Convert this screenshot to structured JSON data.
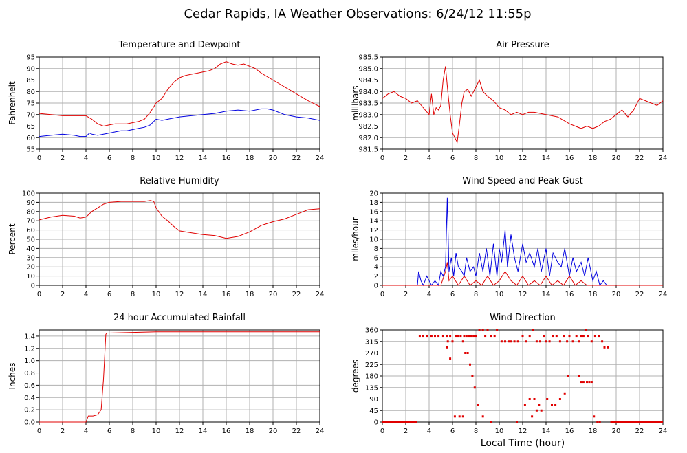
{
  "page": {
    "title": "Cedar Rapids, IA Weather Observations: 6/24/12 11:55p",
    "xlabel": "Local Time (hour)"
  },
  "colors": {
    "red": "#e00000",
    "blue": "#0000e0",
    "grid": "#b0b0b0"
  },
  "chart_data": [
    {
      "id": "temp",
      "type": "line",
      "title": "Temperature and Dewpoint",
      "ylabel": "Fahrenheit",
      "xlim": [
        0,
        24
      ],
      "ylim": [
        55,
        95
      ],
      "yticks": [
        "55",
        "60",
        "65",
        "70",
        "75",
        "80",
        "85",
        "90",
        "95"
      ],
      "xticks": [
        "0",
        "2",
        "4",
        "6",
        "8",
        "10",
        "12",
        "14",
        "16",
        "18",
        "20",
        "22",
        "24"
      ],
      "grid": true,
      "series": [
        {
          "color": "red",
          "x": [
            0,
            1,
            2,
            3,
            4,
            4.5,
            5,
            5.5,
            6,
            6.5,
            7,
            7.5,
            8,
            8.5,
            9,
            9.5,
            10,
            10.5,
            11,
            11.5,
            12,
            12.5,
            13,
            13.5,
            14,
            14.5,
            15,
            15.5,
            16,
            16.5,
            17,
            17.5,
            18,
            18.5,
            19,
            19.5,
            20,
            21,
            22,
            23,
            24
          ],
          "y": [
            70.5,
            70,
            69.5,
            69.5,
            69.5,
            68,
            66,
            65,
            65.5,
            66,
            66,
            66,
            66.5,
            67,
            68,
            71,
            75,
            77,
            81,
            84,
            86,
            87,
            87.5,
            88,
            88.5,
            89,
            90,
            92,
            93,
            92,
            91.5,
            92,
            91,
            90,
            88,
            86.5,
            85,
            82,
            79,
            76,
            73.5
          ]
        },
        {
          "color": "blue",
          "x": [
            0,
            1,
            2,
            3,
            3.5,
            4,
            4.3,
            4.5,
            5,
            5.5,
            6,
            6.5,
            7,
            7.5,
            8,
            8.5,
            9,
            9.5,
            10,
            10.5,
            11,
            11.5,
            12,
            13,
            14,
            15,
            16,
            17,
            18,
            19,
            19.5,
            20,
            21,
            22,
            23,
            24
          ],
          "y": [
            60.5,
            61,
            61.5,
            61,
            60.5,
            60.5,
            62,
            61.5,
            61,
            61.5,
            62,
            62.5,
            63,
            63,
            63.5,
            64,
            64.5,
            65.5,
            68,
            67.5,
            68,
            68.5,
            69,
            69.5,
            70,
            70.5,
            71.5,
            72,
            71.5,
            72.5,
            72.5,
            72,
            70,
            69,
            68.5,
            67.5
          ]
        }
      ]
    },
    {
      "id": "pressure",
      "type": "line",
      "title": "Air Pressure",
      "ylabel": "millibars",
      "xlim": [
        0,
        24
      ],
      "ylim": [
        981.5,
        985.5
      ],
      "yticks": [
        "981.5",
        "982.0",
        "982.5",
        "983.0",
        "983.5",
        "984.0",
        "984.5",
        "985.0",
        "985.5"
      ],
      "xticks": [
        "0",
        "2",
        "4",
        "6",
        "8",
        "10",
        "12",
        "14",
        "16",
        "18",
        "20",
        "22",
        "24"
      ],
      "grid": true,
      "series": [
        {
          "color": "red",
          "x": [
            0,
            0.5,
            1,
            1.5,
            2,
            2.5,
            3,
            3.5,
            4,
            4.2,
            4.4,
            4.6,
            4.8,
            5,
            5.2,
            5.4,
            5.6,
            5.8,
            6,
            6.2,
            6.4,
            6.6,
            6.8,
            7,
            7.3,
            7.6,
            8,
            8.3,
            8.6,
            9,
            9.5,
            10,
            10.5,
            11,
            11.5,
            12,
            12.5,
            13,
            14,
            15,
            16,
            16.5,
            17,
            17.5,
            18,
            18.5,
            19,
            19.5,
            20,
            20.5,
            21,
            21.5,
            22,
            22.5,
            23,
            23.5,
            24
          ],
          "y": [
            983.7,
            983.9,
            984.0,
            983.8,
            983.7,
            983.5,
            983.6,
            983.3,
            983.0,
            983.9,
            983.0,
            983.3,
            983.2,
            983.4,
            984.5,
            985.1,
            984.0,
            983.0,
            982.2,
            982.0,
            981.8,
            982.6,
            983.5,
            984.0,
            984.1,
            983.8,
            984.2,
            984.5,
            984.0,
            983.8,
            983.6,
            983.3,
            983.2,
            983.0,
            983.1,
            983.0,
            983.1,
            983.1,
            983.0,
            982.9,
            982.6,
            982.5,
            982.4,
            982.5,
            982.4,
            982.5,
            982.7,
            982.8,
            983.0,
            983.2,
            982.9,
            983.2,
            983.7,
            983.6,
            983.5,
            983.4,
            983.6
          ]
        }
      ]
    },
    {
      "id": "rh",
      "type": "line",
      "title": "Relative Humidity",
      "ylabel": "Percent",
      "xlim": [
        0,
        24
      ],
      "ylim": [
        0,
        100
      ],
      "yticks": [
        "0",
        "10",
        "20",
        "30",
        "40",
        "50",
        "60",
        "70",
        "80",
        "90",
        "100"
      ],
      "xticks": [
        "0",
        "2",
        "4",
        "6",
        "8",
        "10",
        "12",
        "14",
        "16",
        "18",
        "20",
        "22",
        "24"
      ],
      "grid": true,
      "series": [
        {
          "color": "red",
          "x": [
            0,
            1,
            2,
            3,
            3.5,
            4,
            4.5,
            5,
            5.5,
            6,
            7,
            8,
            9,
            9.5,
            9.8,
            10,
            10.5,
            11,
            11.5,
            12,
            13,
            14,
            15,
            16,
            17,
            18,
            19,
            20,
            21,
            22,
            23,
            24
          ],
          "y": [
            71,
            74,
            76,
            75,
            73,
            74,
            80,
            84,
            88,
            90,
            91,
            91,
            91,
            92,
            91,
            84,
            75,
            70,
            64,
            59,
            57,
            55,
            54,
            51,
            53,
            58,
            65,
            69,
            72,
            77,
            82,
            83
          ]
        }
      ]
    },
    {
      "id": "wind",
      "type": "line",
      "title": "Wind Speed and Peak Gust",
      "ylabel": "miles/hour",
      "xlim": [
        0,
        24
      ],
      "ylim": [
        0,
        20
      ],
      "yticks": [
        "0",
        "2",
        "4",
        "6",
        "8",
        "10",
        "12",
        "14",
        "16",
        "18",
        "20"
      ],
      "xticks": [
        "0",
        "2",
        "4",
        "6",
        "8",
        "10",
        "12",
        "14",
        "16",
        "18",
        "20",
        "22",
        "24"
      ],
      "grid": true,
      "series": [
        {
          "color": "blue",
          "x": [
            0,
            3,
            3.1,
            3.3,
            3.5,
            3.8,
            4,
            4.2,
            4.5,
            4.8,
            5,
            5.2,
            5.4,
            5.55,
            5.7,
            5.9,
            6.1,
            6.3,
            6.5,
            6.8,
            7,
            7.2,
            7.5,
            7.8,
            8,
            8.3,
            8.6,
            8.9,
            9.2,
            9.5,
            9.8,
            10,
            10.2,
            10.5,
            10.7,
            11,
            11.3,
            11.6,
            12,
            12.3,
            12.6,
            13,
            13.3,
            13.6,
            14,
            14.3,
            14.6,
            15,
            15.3,
            15.6,
            16,
            16.3,
            16.6,
            17,
            17.3,
            17.6,
            18,
            18.3,
            18.6,
            18.9,
            19.2,
            19.5,
            24
          ],
          "y": [
            0,
            0,
            3,
            1,
            0,
            2,
            1,
            0,
            1,
            0,
            3,
            2,
            4,
            19,
            3,
            6,
            2,
            7,
            4,
            3,
            2,
            6,
            3,
            4,
            2,
            7,
            3,
            8,
            2,
            9,
            2,
            8,
            5,
            12,
            4,
            11,
            6,
            3,
            9,
            5,
            7,
            4,
            8,
            3,
            8,
            2,
            7,
            5,
            4,
            8,
            2,
            6,
            3,
            5,
            2,
            6,
            1,
            3,
            0,
            1,
            0,
            0,
            0
          ]
        },
        {
          "color": "red",
          "x": [
            0,
            5,
            5.4,
            5.55,
            5.7,
            6,
            6.5,
            7,
            7.5,
            8,
            8.5,
            9,
            9.5,
            10,
            10.5,
            11,
            11.5,
            12,
            12.5,
            13,
            13.5,
            14,
            14.5,
            15,
            15.5,
            16,
            16.5,
            17,
            17.5,
            24
          ],
          "y": [
            0,
            0,
            3,
            5,
            1,
            2,
            0,
            2,
            0,
            1,
            0,
            2,
            0,
            1,
            3,
            1,
            0,
            2,
            0,
            1,
            0,
            2,
            0,
            1,
            0,
            2,
            0,
            1,
            0,
            0
          ]
        }
      ]
    },
    {
      "id": "rain",
      "type": "line",
      "title": "24 hour Accumulated Rainfall",
      "ylabel": "Inches",
      "xlim": [
        0,
        24
      ],
      "ylim": [
        0,
        1.5
      ],
      "yticks": [
        "0.0",
        "0.2",
        "0.4",
        "0.6",
        "0.8",
        "1.0",
        "1.2",
        "1.4"
      ],
      "xticks": [
        "0",
        "2",
        "4",
        "6",
        "8",
        "10",
        "12",
        "14",
        "16",
        "18",
        "20",
        "22",
        "24"
      ],
      "grid": true,
      "series": [
        {
          "color": "red",
          "x": [
            0,
            4,
            4.2,
            4.6,
            5,
            5.3,
            5.5,
            5.7,
            5.8,
            6,
            8,
            10,
            24
          ],
          "y": [
            0,
            0,
            0.1,
            0.1,
            0.12,
            0.2,
            0.7,
            1.43,
            1.45,
            1.45,
            1.46,
            1.47,
            1.47
          ]
        }
      ]
    },
    {
      "id": "winddir",
      "type": "scatter",
      "title": "Wind Direction",
      "ylabel": "degrees",
      "xlim": [
        0,
        24
      ],
      "ylim": [
        0,
        360
      ],
      "yticks": [
        "0",
        "45",
        "90",
        "135",
        "180",
        "225",
        "270",
        "315",
        "360"
      ],
      "xticks": [
        "0",
        "2",
        "4",
        "6",
        "8",
        "10",
        "12",
        "14",
        "16",
        "18",
        "20",
        "22",
        "24"
      ],
      "grid": true,
      "series": [
        {
          "color": "red",
          "x": [
            3.2,
            3.5,
            3.8,
            4.2,
            4.5,
            4.8,
            5.2,
            5.5,
            5.6,
            5.8,
            6.0,
            6.3,
            6.5,
            6.7,
            6.9,
            7.0,
            7.2,
            7.4,
            7.6,
            7.8,
            8.0,
            8.3,
            8.6,
            8.8,
            9.0,
            9.3,
            9.6,
            9.8,
            10.2,
            10.5,
            10.8,
            11.0,
            11.3,
            11.6,
            12.0,
            12.3,
            12.6,
            12.9,
            13.2,
            13.5,
            13.8,
            14.0,
            14.3,
            14.6,
            14.9,
            15.2,
            15.5,
            15.8,
            16.0,
            16.3,
            16.6,
            16.8,
            17.0,
            17.2,
            17.4,
            17.6,
            17.9,
            18.2,
            18.5,
            18.8,
            19.0,
            19.3,
            5.5,
            5.8,
            6.2,
            6.6,
            6.9,
            7.1,
            7.3,
            7.5,
            7.7,
            7.9,
            8.2,
            8.6,
            9.3,
            11.5,
            12.2,
            12.6,
            12.8,
            13.0,
            13.2,
            13.4,
            13.6,
            14.1,
            14.5,
            14.8,
            15.2,
            15.6,
            15.9,
            16.8,
            17.0,
            17.2,
            17.5,
            17.7,
            17.9,
            18.1,
            18.4,
            18.6
          ],
          "y": [
            337,
            337,
            337,
            337,
            337,
            337,
            337,
            337,
            315,
            337,
            315,
            337,
            337,
            337,
            315,
            337,
            337,
            337,
            337,
            337,
            337,
            360,
            360,
            337,
            360,
            337,
            337,
            360,
            315,
            315,
            315,
            315,
            315,
            315,
            337,
            315,
            337,
            360,
            315,
            315,
            337,
            315,
            315,
            337,
            337,
            315,
            337,
            315,
            337,
            315,
            337,
            315,
            337,
            337,
            360,
            337,
            315,
            337,
            337,
            315,
            292,
            292,
            292,
            248,
            22,
            22,
            22,
            270,
            270,
            225,
            180,
            135,
            67,
            22,
            0,
            0,
            67,
            90,
            22,
            90,
            45,
            67,
            45,
            90,
            67,
            67,
            90,
            112,
            180,
            180,
            157,
            157,
            157,
            157,
            157,
            22,
            0,
            0
          ]
        }
      ]
    }
  ]
}
